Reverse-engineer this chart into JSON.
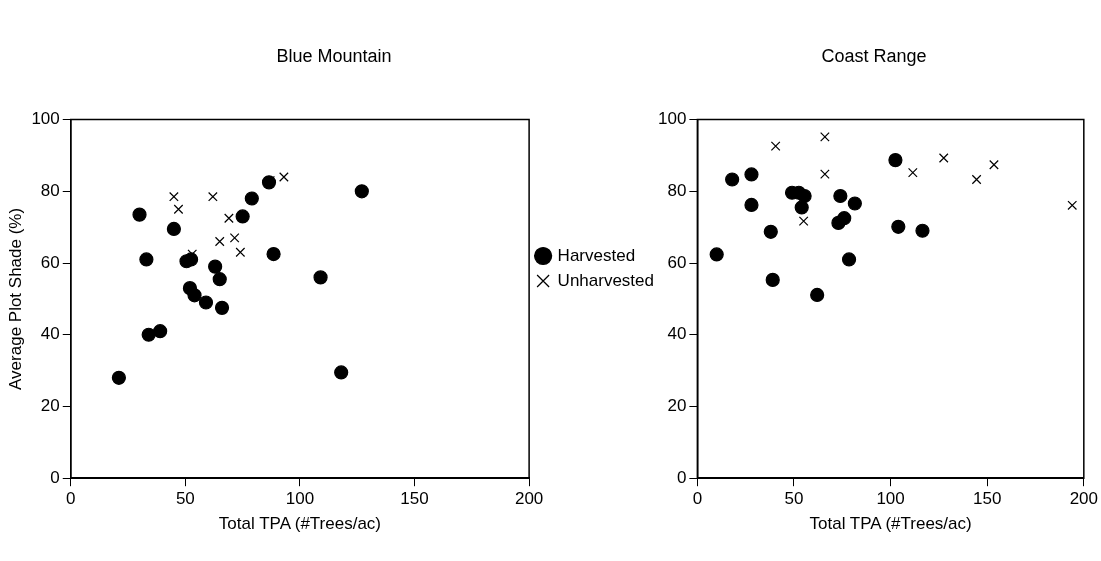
{
  "chart_data": [
    {
      "type": "scatter",
      "title": "Blue Mountain",
      "xlabel": "Total TPA (#Trees/ac)",
      "ylabel": "Average Plot Shade (%)",
      "xlim": [
        0,
        200
      ],
      "xticks": [
        0,
        50,
        100,
        150,
        200
      ],
      "ylim": [
        0,
        100
      ],
      "yticks": [
        0,
        20,
        40,
        60,
        80,
        100
      ],
      "grid": false,
      "legend": "right",
      "series": [
        {
          "name": "Harvested",
          "color": "#000000",
          "marker": "circle",
          "x": [
            21,
            30,
            33,
            34,
            39,
            45,
            50.5,
            52.5,
            52,
            54,
            59,
            63,
            65,
            66,
            75,
            79,
            86.5,
            88.5,
            109,
            118,
            127
          ],
          "values": [
            28,
            73.5,
            61,
            40,
            41,
            69.5,
            60.5,
            61,
            53,
            51,
            49,
            59,
            55.5,
            47.5,
            73,
            78,
            82.5,
            62.5,
            56,
            29.5,
            80
          ]
        },
        {
          "name": "Unharvested",
          "color": "#000000",
          "marker": "cross",
          "x": [
            45,
            47,
            53,
            62,
            65,
            69,
            71.5,
            74,
            87,
            93
          ],
          "values": [
            78.5,
            75,
            62.5,
            78.5,
            66,
            72.5,
            67,
            63,
            83,
            84
          ]
        }
      ]
    },
    {
      "type": "scatter",
      "title": "Coast Range",
      "xlabel": "Total TPA (#Trees/ac)",
      "xlim": [
        0,
        200
      ],
      "xticks": [
        0,
        50,
        100,
        150,
        200
      ],
      "ylim": [
        0,
        100
      ],
      "yticks": [
        0,
        20,
        40,
        60,
        80,
        100
      ],
      "grid": false,
      "series": [
        {
          "color": "#000000",
          "marker": "circle",
          "x": [
            18,
            28,
            28,
            38,
            10,
            39,
            49,
            52.5,
            55.5,
            54,
            62,
            74,
            81.5,
            76,
            73,
            78.5,
            102.5,
            104,
            116.5
          ],
          "values": [
            83.3,
            84.7,
            76.2,
            68.7,
            62.4,
            55.3,
            79.6,
            79.6,
            78.7,
            75.5,
            51.1,
            78.7,
            76.6,
            72.5,
            71.2,
            61,
            88.7,
            70.1,
            69
          ]
        },
        {
          "color": "#000000",
          "marker": "cross",
          "x": [
            40.5,
            66,
            66,
            55,
            111.5,
            127.5,
            144.5,
            153.5,
            194
          ],
          "values": [
            92.6,
            95.2,
            84.8,
            71.7,
            85.2,
            89.3,
            83.3,
            87.4,
            76.1
          ]
        }
      ]
    }
  ]
}
